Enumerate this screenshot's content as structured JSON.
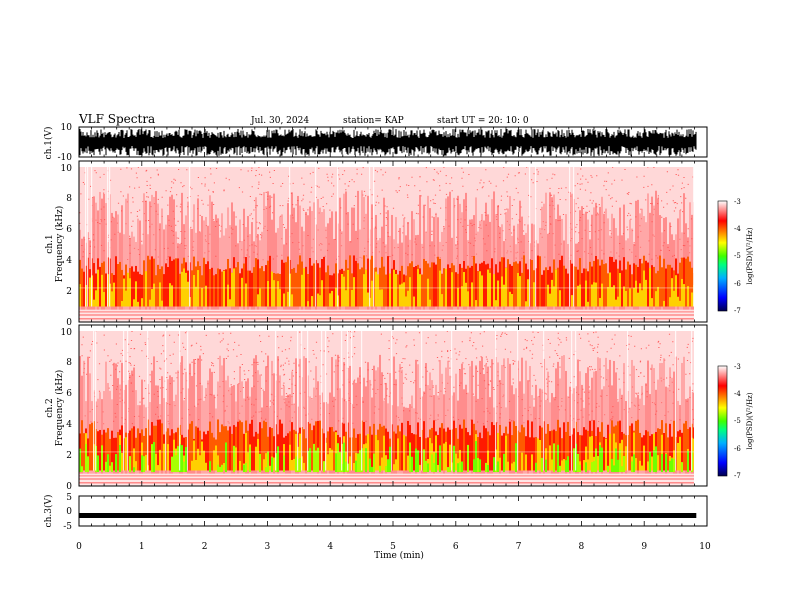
{
  "header": {
    "title": "VLF Spectra",
    "date": "Jul. 30, 2024",
    "station": "station= KAP",
    "start": "start  UT =   20: 10: 0"
  },
  "chart_data": [
    {
      "type": "line",
      "name": "ch1-waveform",
      "ylabel": "ch.1(V)",
      "ylim": [
        -10,
        10
      ],
      "yticks": [
        "10",
        "-10"
      ],
      "xlim": [
        0,
        10
      ],
      "data_end_min": 9.83,
      "color": "#000000"
    },
    {
      "type": "heatmap",
      "name": "ch1-spectrogram",
      "ylabel": "ch.1\nFrequency (kHz)",
      "ylim": [
        0,
        10
      ],
      "yticks": [
        "0",
        "2",
        "4",
        "6",
        "8",
        "10"
      ],
      "xlim": [
        0,
        10
      ],
      "data_end_min": 9.83,
      "colorbar": {
        "label": "log(PSD)(V²/Hz)",
        "range": [
          -7,
          -3
        ],
        "ticks": [
          "-3",
          "-4",
          "-5",
          "-6",
          "-7"
        ]
      }
    },
    {
      "type": "heatmap",
      "name": "ch2-spectrogram",
      "ylabel": "ch.2\nFrequency (kHz)",
      "ylim": [
        0,
        10
      ],
      "yticks": [
        "0",
        "2",
        "4",
        "6",
        "8",
        "10"
      ],
      "xlim": [
        0,
        10
      ],
      "data_end_min": 9.83,
      "colorbar": {
        "label": "log(PSD)(V²/Hz)",
        "range": [
          -7,
          -3
        ],
        "ticks": [
          "-3",
          "-4",
          "-5",
          "-6",
          "-7"
        ]
      }
    },
    {
      "type": "line",
      "name": "ch3-waveform",
      "ylabel": "ch.3(V)",
      "ylim": [
        -5,
        5
      ],
      "yticks": [
        "5",
        "0",
        "-5"
      ],
      "xlim": [
        0,
        10
      ],
      "xlabel": "Time (min)",
      "xticks": [
        "0",
        "1",
        "2",
        "3",
        "4",
        "5",
        "6",
        "7",
        "8",
        "9",
        "10"
      ],
      "data_end_min": 9.83,
      "level": -1.5,
      "color": "#000000"
    }
  ],
  "colors": {
    "spectrum": [
      "#000060",
      "#0000ff",
      "#00c0ff",
      "#00ff80",
      "#40ff00",
      "#ffff00",
      "#ff8000",
      "#ff0000",
      "#ff8080",
      "#ffffff"
    ]
  }
}
